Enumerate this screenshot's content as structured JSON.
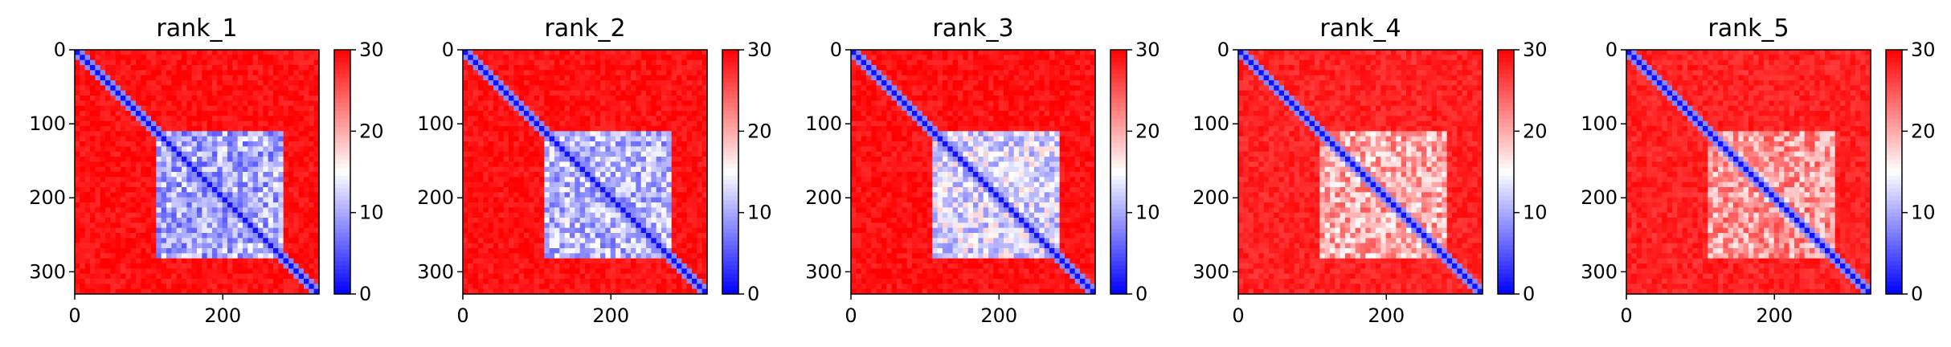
{
  "figure": {
    "colormap": {
      "name": "bwr",
      "low": "#0000ff",
      "mid": "#ffffff",
      "high": "#ff0000"
    },
    "colorbar": {
      "range": [
        0,
        30
      ],
      "ticks": [
        "0",
        "10",
        "20",
        "30"
      ]
    }
  },
  "chart_data": [
    {
      "type": "heatmap",
      "title": "rank_1",
      "xlim": [
        0,
        330
      ],
      "ylim": [
        330,
        0
      ],
      "xticks": [
        "0",
        "200"
      ],
      "yticks": [
        "0",
        "100",
        "200",
        "300"
      ],
      "block_region": [
        110,
        280
      ],
      "block_value": 10,
      "background_value": 29,
      "diagonal_value": 1
    },
    {
      "type": "heatmap",
      "title": "rank_2",
      "xlim": [
        0,
        330
      ],
      "ylim": [
        330,
        0
      ],
      "xticks": [
        "0",
        "200"
      ],
      "yticks": [
        "0",
        "100",
        "200",
        "300"
      ],
      "block_region": [
        110,
        280
      ],
      "block_value": 11,
      "background_value": 29,
      "diagonal_value": 1
    },
    {
      "type": "heatmap",
      "title": "rank_3",
      "xlim": [
        0,
        330
      ],
      "ylim": [
        330,
        0
      ],
      "xticks": [
        "0",
        "200"
      ],
      "yticks": [
        "0",
        "100",
        "200",
        "300"
      ],
      "block_region": [
        110,
        280
      ],
      "block_value": 13,
      "background_value": 29,
      "diagonal_value": 1
    },
    {
      "type": "heatmap",
      "title": "rank_4",
      "xlim": [
        0,
        330
      ],
      "ylim": [
        330,
        0
      ],
      "xticks": [
        "0",
        "200"
      ],
      "yticks": [
        "0",
        "100",
        "200",
        "300"
      ],
      "block_region": [
        110,
        280
      ],
      "block_value": 20,
      "background_value": 28,
      "diagonal_value": 1
    },
    {
      "type": "heatmap",
      "title": "rank_5",
      "xlim": [
        0,
        330
      ],
      "ylim": [
        330,
        0
      ],
      "xticks": [
        "0",
        "200"
      ],
      "yticks": [
        "0",
        "100",
        "200",
        "300"
      ],
      "block_region": [
        110,
        280
      ],
      "block_value": 21,
      "background_value": 28,
      "diagonal_value": 1
    }
  ]
}
